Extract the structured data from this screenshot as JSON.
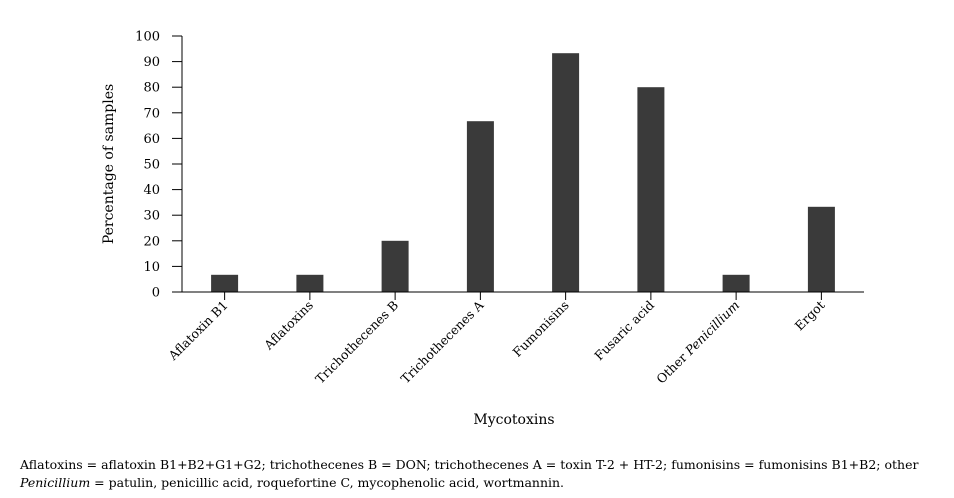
{
  "chart_data": {
    "type": "bar",
    "categories": [
      "Aflatoxin B1",
      "Aflatoxins",
      "Trichothecenes B",
      "Trichothecenes A",
      "Fumonisins",
      "Fusaric acid",
      "Other Penicillium",
      "Ergot"
    ],
    "category_display": [
      {
        "pre": "Aflatoxin B1",
        "ital": ""
      },
      {
        "pre": "Aflatoxins",
        "ital": ""
      },
      {
        "pre": "Trichothecenes B",
        "ital": ""
      },
      {
        "pre": "Trichothecenes A",
        "ital": ""
      },
      {
        "pre": "Fumonisins",
        "ital": ""
      },
      {
        "pre": "Fusaric acid",
        "ital": ""
      },
      {
        "pre": "Other ",
        "ital": "Penicillium"
      },
      {
        "pre": "Ergot",
        "ital": ""
      }
    ],
    "values": [
      6.7,
      6.7,
      20,
      66.7,
      93.3,
      80,
      6.7,
      33.3
    ],
    "ylim": [
      0,
      100
    ],
    "yticks": [
      "0",
      "10",
      "20",
      "30",
      "40",
      "50",
      "60",
      "70",
      "80",
      "90",
      "100"
    ],
    "xlabel": "Mycotoxins",
    "ylabel": "Percentage of samples",
    "bar_color": "#3a3a3a",
    "grid": false
  },
  "footnote": {
    "line1": "Aflatoxins = aflatoxin B1+B2+G1+G2; trichothecenes B = DON; trichothecenes A = toxin T-2 + HT-2; fumonisins = fumonisins B1+B2; other",
    "line2_italic": "Penicillium",
    "line2_rest": " = patulin, penicillic acid, roquefortine C, mycophenolic acid, wortmannin."
  }
}
